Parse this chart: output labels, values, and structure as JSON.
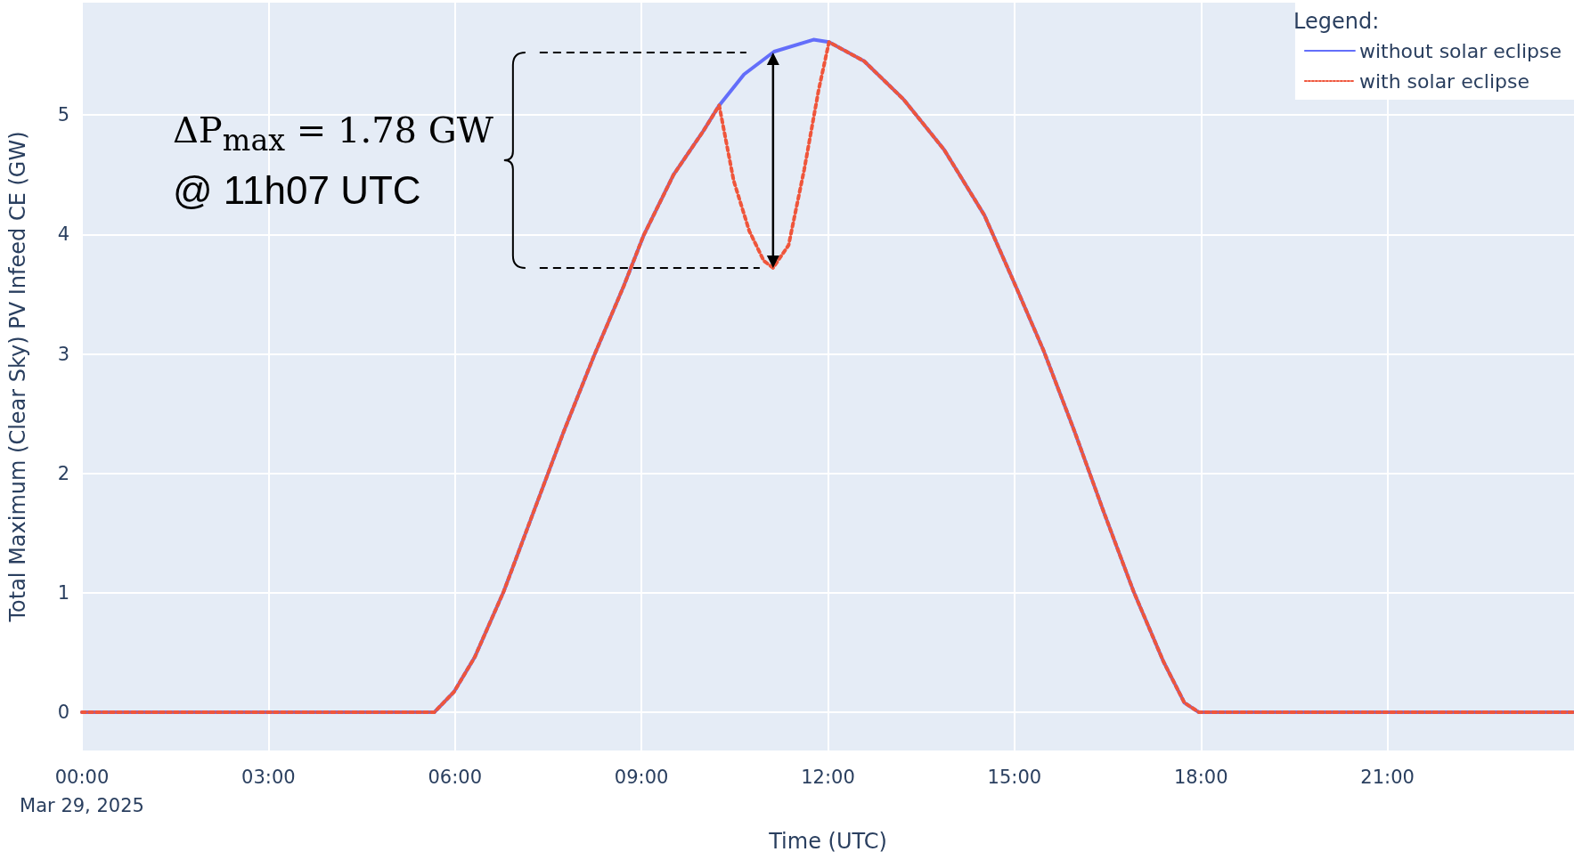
{
  "chart_data": {
    "type": "line",
    "xlabel": "Time (UTC)",
    "ylabel": "Total Maximum (Clear Sky) PV Infeed CE (GW)",
    "legend_title": "Legend:",
    "legend": "top right",
    "grid": true,
    "marker": "none",
    "xlim": [
      "2025-03-29T00:00",
      "2025-03-30T00:00"
    ],
    "ylim": [
      -0.32,
      5.94
    ],
    "yticks": [
      0,
      1,
      2,
      3,
      4,
      5
    ],
    "xticks": [
      {
        "value": "2025-03-29T00:00",
        "label": "00:00\nMar 29, 2025"
      },
      {
        "value": "2025-03-29T03:00",
        "label": "03:00"
      },
      {
        "value": "2025-03-29T06:00",
        "label": "06:00"
      },
      {
        "value": "2025-03-29T09:00",
        "label": "09:00"
      },
      {
        "value": "2025-03-29T12:00",
        "label": "12:00"
      },
      {
        "value": "2025-03-29T15:00",
        "label": "15:00"
      },
      {
        "value": "2025-03-29T18:00",
        "label": "18:00"
      },
      {
        "value": "2025-03-29T21:00",
        "label": "21:00"
      }
    ],
    "annotations": [
      "ΔP$_{max}$ = 1.78 GW\n@ 11h07 UTC"
    ],
    "series": [
      {
        "name": "without solar eclipse",
        "color": "#636efa",
        "line_style": "solid",
        "x": [
          "2025-03-29T00:00",
          "2025-03-29T05:40",
          "2025-03-29T05:59",
          "2025-03-29T06:19",
          "2025-03-29T06:47",
          "2025-03-29T07:16",
          "2025-03-29T07:45",
          "2025-03-29T08:14",
          "2025-03-29T08:43",
          "2025-03-29T09:02",
          "2025-03-29T09:31",
          "2025-03-29T10:00",
          "2025-03-29T10:15",
          "2025-03-29T10:39",
          "2025-03-29T11:08",
          "2025-03-29T11:46",
          "2025-03-29T12:01",
          "2025-03-29T12:35",
          "2025-03-29T13:13",
          "2025-03-29T13:52",
          "2025-03-29T14:31",
          "2025-03-29T14:59",
          "2025-03-29T15:28",
          "2025-03-29T15:58",
          "2025-03-29T16:26",
          "2025-03-29T16:55",
          "2025-03-29T17:24",
          "2025-03-29T17:44",
          "2025-03-29T17:58",
          "2025-03-30T00:00"
        ],
        "values": [
          0,
          0,
          0.17,
          0.46,
          1.01,
          1.68,
          2.35,
          2.98,
          3.57,
          3.99,
          4.5,
          4.87,
          5.08,
          5.34,
          5.53,
          5.63,
          5.61,
          5.45,
          5.13,
          4.71,
          4.16,
          3.61,
          3.03,
          2.35,
          1.68,
          1.01,
          0.42,
          0.08,
          0,
          0
        ]
      },
      {
        "name": "with solar eclipse",
        "color": "#ef553b",
        "line_style": "dotted",
        "x": [
          "2025-03-29T00:00",
          "2025-03-29T05:40",
          "2025-03-29T05:59",
          "2025-03-29T06:19",
          "2025-03-29T06:47",
          "2025-03-29T07:16",
          "2025-03-29T07:45",
          "2025-03-29T08:14",
          "2025-03-29T08:43",
          "2025-03-29T09:02",
          "2025-03-29T09:31",
          "2025-03-29T10:00",
          "2025-03-29T10:15",
          "2025-03-29T10:29",
          "2025-03-29T10:44",
          "2025-03-29T10:58",
          "2025-03-29T11:07",
          "2025-03-29T11:22",
          "2025-03-29T11:37",
          "2025-03-29T11:51",
          "2025-03-29T12:01",
          "2025-03-29T12:35",
          "2025-03-29T13:13",
          "2025-03-29T13:52",
          "2025-03-29T14:31",
          "2025-03-29T14:59",
          "2025-03-29T15:28",
          "2025-03-29T15:58",
          "2025-03-29T16:26",
          "2025-03-29T16:55",
          "2025-03-29T17:24",
          "2025-03-29T17:44",
          "2025-03-29T17:58",
          "2025-03-30T00:00"
        ],
        "values": [
          0,
          0,
          0.17,
          0.46,
          1.01,
          1.68,
          2.35,
          2.98,
          3.57,
          3.99,
          4.5,
          4.87,
          5.08,
          4.45,
          4.03,
          3.78,
          3.72,
          3.91,
          4.54,
          5.21,
          5.61,
          5.45,
          5.13,
          4.71,
          4.16,
          3.61,
          3.03,
          2.35,
          1.68,
          1.01,
          0.42,
          0.08,
          0,
          0
        ]
      }
    ]
  }
}
